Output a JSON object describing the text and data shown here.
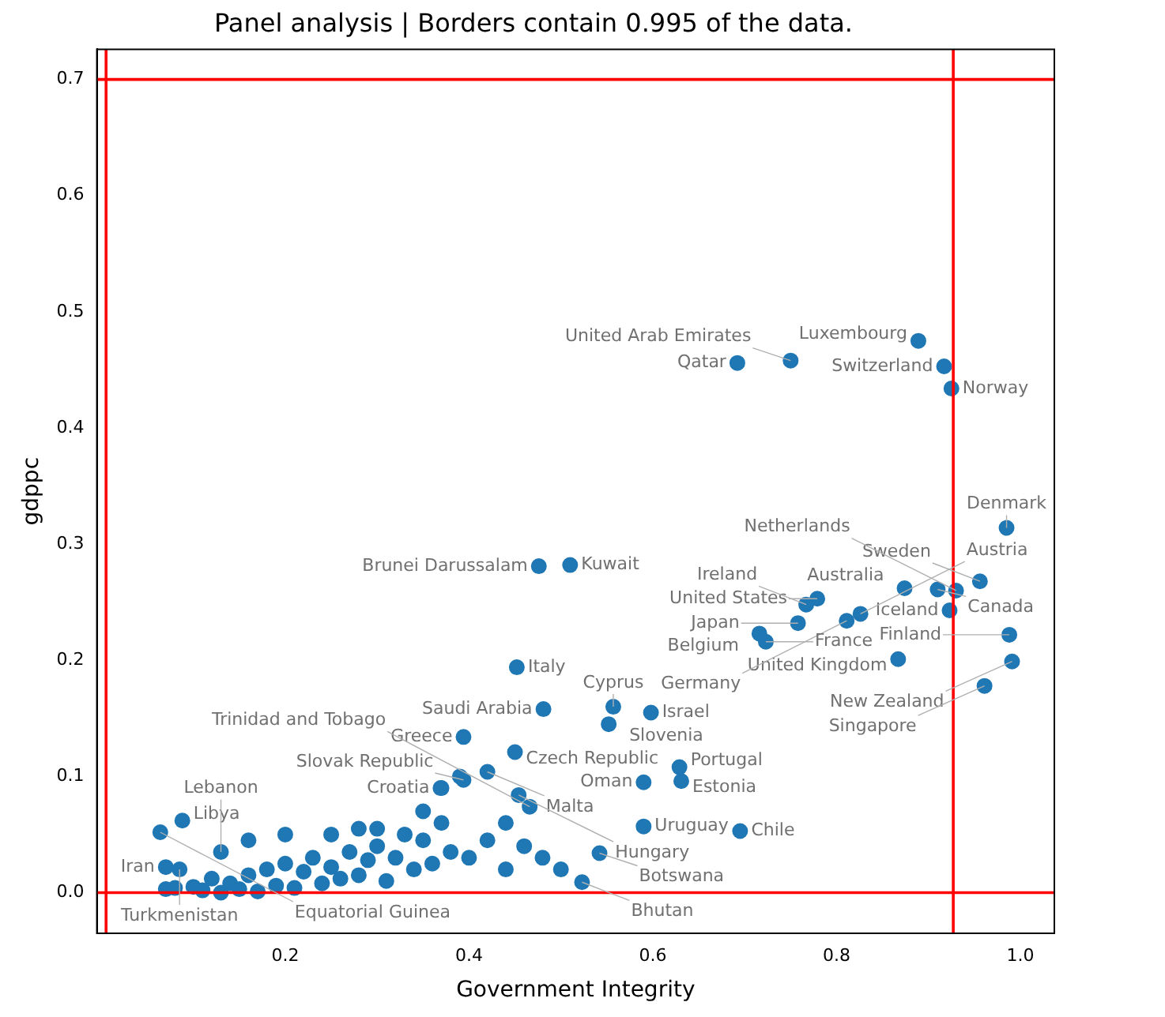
{
  "chart_data": {
    "type": "scatter",
    "title": "Panel analysis | Borders contain 0.995 of the data.",
    "xlabel": "Government Integrity",
    "ylabel": "gdppc",
    "x": [
      0.889,
      0.692,
      0.75,
      0.917,
      0.925,
      0.985,
      0.874,
      0.91,
      0.956,
      0.93,
      0.923,
      0.988,
      0.991,
      0.961,
      0.867,
      0.779,
      0.767,
      0.811,
      0.826,
      0.758,
      0.716,
      0.723,
      0.476,
      0.51,
      0.452,
      0.481,
      0.557,
      0.598,
      0.552,
      0.394,
      0.45,
      0.42,
      0.394,
      0.59,
      0.629,
      0.631,
      0.369,
      0.454,
      0.59,
      0.695,
      0.542,
      0.523,
      0.466,
      0.088,
      0.064,
      0.13,
      0.085,
      0.07,
      0.07,
      0.08,
      0.1,
      0.11,
      0.12,
      0.13,
      0.14,
      0.15,
      0.16,
      0.17,
      0.18,
      0.19,
      0.2,
      0.21,
      0.22,
      0.23,
      0.24,
      0.25,
      0.26,
      0.27,
      0.28,
      0.29,
      0.3,
      0.31,
      0.32,
      0.33,
      0.34,
      0.35,
      0.36,
      0.37,
      0.38,
      0.4,
      0.42,
      0.44,
      0.46,
      0.48,
      0.5,
      0.16,
      0.2,
      0.25,
      0.3,
      0.39,
      0.37,
      0.35,
      0.28,
      0.44
    ],
    "values": [
      0.475,
      0.456,
      0.458,
      0.453,
      0.434,
      0.314,
      0.262,
      0.261,
      0.268,
      0.26,
      0.243,
      0.222,
      0.199,
      0.178,
      0.201,
      0.253,
      0.248,
      0.234,
      0.24,
      0.232,
      0.223,
      0.216,
      0.281,
      0.282,
      0.194,
      0.158,
      0.16,
      0.155,
      0.145,
      0.134,
      0.121,
      0.104,
      0.097,
      0.095,
      0.108,
      0.096,
      0.09,
      0.084,
      0.057,
      0.053,
      0.034,
      0.009,
      0.074,
      0.062,
      0.052,
      0.035,
      0.02,
      0.022,
      0.003,
      0.004,
      0.005,
      0.002,
      0.012,
      0.0,
      0.008,
      0.003,
      0.015,
      0.001,
      0.02,
      0.006,
      0.025,
      0.004,
      0.018,
      0.03,
      0.008,
      0.022,
      0.012,
      0.035,
      0.015,
      0.028,
      0.04,
      0.01,
      0.03,
      0.05,
      0.02,
      0.045,
      0.025,
      0.06,
      0.035,
      0.03,
      0.045,
      0.02,
      0.04,
      0.03,
      0.02,
      0.045,
      0.05,
      0.05,
      0.055,
      0.1,
      0.09,
      0.07,
      0.055,
      0.06
    ],
    "value_labels": [
      "Luxembourg",
      "Qatar",
      "United Arab Emirates",
      "Switzerland",
      "Norway",
      "Denmark",
      "Australia",
      "Canada",
      "Sweden",
      "Netherlands",
      "Iceland",
      "Finland",
      "New Zealand",
      "Singapore",
      "United Kingdom",
      "United States",
      "Ireland",
      "Germany",
      "Austria",
      "Japan",
      "Belgium",
      "France",
      "Brunei Darussalam",
      "Kuwait",
      "Italy",
      "Saudi Arabia",
      "Cyprus",
      "Israel",
      "Slovenia",
      "Greece",
      "Czech Republic",
      "Malta",
      "Slovak Republic",
      "Oman",
      "Portugal",
      "Estonia",
      "Croatia",
      "Hungary",
      "Uruguay",
      "Chile",
      "Botswana",
      "Bhutan",
      "Trinidad and Tobago",
      "Libya",
      "Equatorial Guinea",
      "Lebanon",
      "Turkmenistan",
      "Iran",
      null,
      null,
      null,
      null,
      null,
      null,
      null,
      null,
      null,
      null,
      null,
      null,
      null,
      null,
      null,
      null,
      null,
      null,
      null,
      null,
      null,
      null,
      null,
      null,
      null,
      null,
      null,
      null,
      null,
      null,
      null,
      null,
      null,
      null,
      null,
      null,
      null,
      null,
      null,
      null,
      null,
      null,
      null,
      null,
      null,
      null
    ],
    "color": "#1f77b4",
    "marker": "circle",
    "xlim": [
      -0.005,
      1.037
    ],
    "ylim": [
      -0.035,
      0.726
    ],
    "xticks": [
      0.2,
      0.4,
      0.6,
      0.8,
      {
        "value": 1,
        "label": "1.0"
      }
    ],
    "yticks": [
      {
        "value": 0,
        "label": "0.0"
      },
      0.1,
      0.2,
      0.3,
      0.4,
      0.5,
      0.6,
      0.7
    ],
    "ref_lines": [
      {
        "axis": "x",
        "value": 0.005,
        "color": "#ff0000"
      },
      {
        "axis": "x",
        "value": 0.927,
        "color": "#ff0000"
      },
      {
        "axis": "y",
        "value": 0,
        "color": "#ff0000"
      },
      {
        "axis": "y",
        "value": 0.7,
        "color": "#ff0000"
      }
    ],
    "grid": false,
    "legend": false
  }
}
